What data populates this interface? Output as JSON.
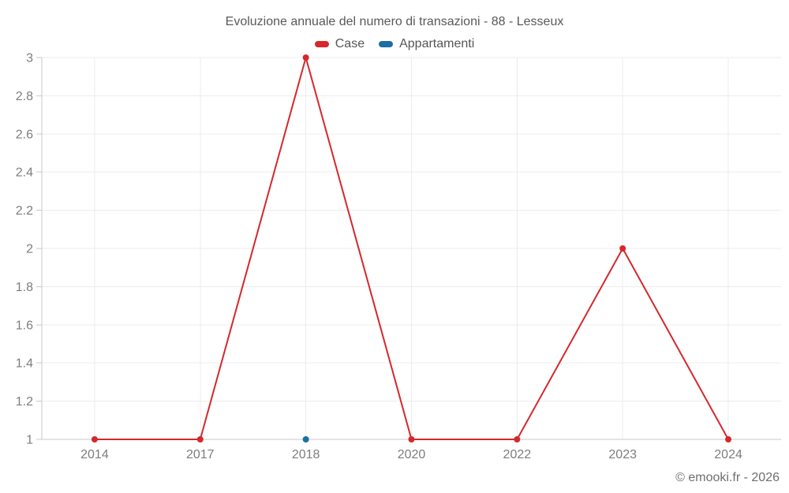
{
  "chart": {
    "title": "Evoluzione annuale del numero di transazioni - 88 - Lesseux",
    "footer_credit": "© emooki.fr - 2026"
  },
  "legend": {
    "items": [
      {
        "label": "Case",
        "color": "#d5282c"
      },
      {
        "label": "Appartamenti",
        "color": "#1c6ea4"
      }
    ]
  },
  "chart_data": {
    "type": "line",
    "title": "Evoluzione annuale del numero di transazioni - 88 - Lesseux",
    "xlabel": "",
    "ylabel": "",
    "categories": [
      "2014",
      "2017",
      "2018",
      "2020",
      "2022",
      "2023",
      "2024"
    ],
    "series": [
      {
        "name": "Case",
        "color": "#d5282c",
        "values": [
          1,
          1,
          3,
          1,
          1,
          2,
          1
        ]
      },
      {
        "name": "Appartamenti",
        "color": "#1c6ea4",
        "values": [
          null,
          null,
          1,
          null,
          null,
          null,
          null
        ]
      }
    ],
    "ylim": [
      1,
      3
    ],
    "yticks": [
      1,
      1.2,
      1.4,
      1.6,
      1.8,
      2,
      2.2,
      2.4,
      2.6,
      2.8,
      3
    ],
    "grid": true,
    "legend_position": "top"
  },
  "colors": {
    "gridline": "#ececec",
    "axis_line": "#c9c9c9",
    "tick_label": "#7d7d7d",
    "title_text": "#595959",
    "footer_text": "#6e6e6e",
    "background": "#ffffff"
  }
}
